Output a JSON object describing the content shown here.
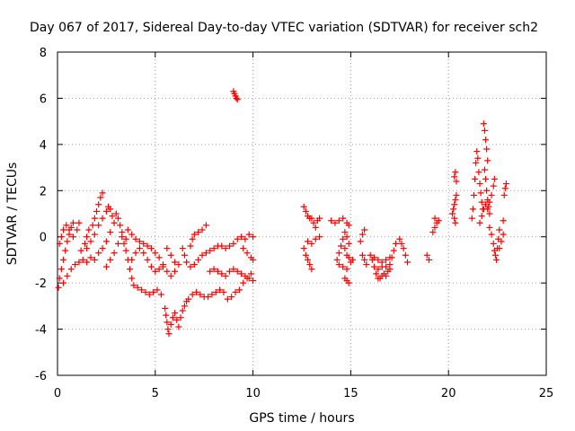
{
  "chart_data": {
    "type": "scatter",
    "title": "Day 067 of 2017, Sidereal Day-to-day VTEC variation (SDTVAR) for receiver sch2",
    "xlabel": "GPS time / hours",
    "ylabel": "SDTVAR / TECUs",
    "xlim": [
      0,
      25
    ],
    "ylim": [
      -6,
      8
    ],
    "xticks": [
      0,
      5,
      10,
      15,
      20,
      25
    ],
    "yticks": [
      -6,
      -4,
      -2,
      0,
      2,
      4,
      6,
      8
    ],
    "grid": true,
    "marker": "+",
    "color": "#ff0000",
    "series": [
      {
        "name": "SDTVAR",
        "points": [
          [
            0.05,
            -2.2
          ],
          [
            0.1,
            -1.8
          ],
          [
            0.2,
            -1.4
          ],
          [
            0.3,
            -1.0
          ],
          [
            0.4,
            -0.6
          ],
          [
            0.5,
            -0.2
          ],
          [
            0.6,
            0.1
          ],
          [
            0.7,
            0.4
          ],
          [
            0.8,
            0.6
          ],
          [
            0.1,
            -0.3
          ],
          [
            0.2,
            0.0
          ],
          [
            0.3,
            0.3
          ],
          [
            0.45,
            0.5
          ],
          [
            0.6,
            0.3
          ],
          [
            0.8,
            0.0
          ],
          [
            1.0,
            0.3
          ],
          [
            1.1,
            0.6
          ],
          [
            0.3,
            -2.0
          ],
          [
            0.5,
            -1.7
          ],
          [
            0.7,
            -1.4
          ],
          [
            0.9,
            -1.2
          ],
          [
            1.1,
            -1.1
          ],
          [
            1.3,
            -1.0
          ],
          [
            1.5,
            -1.1
          ],
          [
            1.7,
            -0.9
          ],
          [
            1.2,
            -0.6
          ],
          [
            1.4,
            -0.3
          ],
          [
            1.5,
            0.0
          ],
          [
            1.6,
            0.3
          ],
          [
            1.8,
            0.5
          ],
          [
            1.9,
            0.8
          ],
          [
            2.0,
            1.1
          ],
          [
            2.1,
            1.4
          ],
          [
            2.2,
            1.7
          ],
          [
            2.3,
            1.9
          ],
          [
            1.5,
            -0.5
          ],
          [
            1.7,
            -0.2
          ],
          [
            1.9,
            0.1
          ],
          [
            2.1,
            0.5
          ],
          [
            2.3,
            0.8
          ],
          [
            2.5,
            1.1
          ],
          [
            2.6,
            1.3
          ],
          [
            2.7,
            1.2
          ],
          [
            2.8,
            0.9
          ],
          [
            1.9,
            -1.0
          ],
          [
            2.1,
            -0.7
          ],
          [
            2.3,
            -0.5
          ],
          [
            2.5,
            -0.2
          ],
          [
            2.7,
            0.2
          ],
          [
            2.9,
            0.6
          ],
          [
            2.5,
            -1.3
          ],
          [
            2.7,
            -1.0
          ],
          [
            2.9,
            -0.7
          ],
          [
            3.1,
            -0.3
          ],
          [
            3.3,
            0.0
          ],
          [
            3.5,
            -0.1
          ],
          [
            3.0,
            1.0
          ],
          [
            3.1,
            0.8
          ],
          [
            3.2,
            0.5
          ],
          [
            3.3,
            0.2
          ],
          [
            3.4,
            -0.3
          ],
          [
            3.5,
            -0.6
          ],
          [
            3.6,
            -1.0
          ],
          [
            3.7,
            -1.4
          ],
          [
            3.8,
            -1.8
          ],
          [
            3.9,
            -2.1
          ],
          [
            4.1,
            -2.2
          ],
          [
            4.3,
            -2.3
          ],
          [
            4.5,
            -2.4
          ],
          [
            4.7,
            -2.5
          ],
          [
            4.9,
            -2.4
          ],
          [
            5.1,
            -2.3
          ],
          [
            5.3,
            -2.5
          ],
          [
            3.6,
            0.3
          ],
          [
            3.8,
            0.1
          ],
          [
            4.0,
            -0.1
          ],
          [
            4.2,
            -0.2
          ],
          [
            4.4,
            -0.3
          ],
          [
            4.6,
            -0.4
          ],
          [
            4.8,
            -0.5
          ],
          [
            5.0,
            -0.7
          ],
          [
            5.2,
            -0.9
          ],
          [
            5.4,
            -1.2
          ],
          [
            3.8,
            -1.0
          ],
          [
            4.0,
            -0.7
          ],
          [
            4.2,
            -0.5
          ],
          [
            4.4,
            -0.7
          ],
          [
            4.6,
            -1.0
          ],
          [
            4.8,
            -1.3
          ],
          [
            5.0,
            -1.5
          ],
          [
            5.2,
            -1.4
          ],
          [
            5.4,
            -1.3
          ],
          [
            5.6,
            -1.5
          ],
          [
            5.8,
            -1.7
          ],
          [
            6.0,
            -1.5
          ],
          [
            5.6,
            -0.5
          ],
          [
            5.8,
            -0.8
          ],
          [
            6.0,
            -1.1
          ],
          [
            6.2,
            -1.2
          ],
          [
            5.5,
            -3.1
          ],
          [
            5.55,
            -3.4
          ],
          [
            5.6,
            -3.7
          ],
          [
            5.65,
            -4.0
          ],
          [
            5.7,
            -4.2
          ],
          [
            5.8,
            -3.8
          ],
          [
            5.9,
            -3.5
          ],
          [
            6.0,
            -3.3
          ],
          [
            6.1,
            -3.6
          ],
          [
            6.2,
            -3.9
          ],
          [
            6.3,
            -3.5
          ],
          [
            6.4,
            -3.2
          ],
          [
            6.5,
            -3.0
          ],
          [
            6.6,
            -2.8
          ],
          [
            6.7,
            -2.7
          ],
          [
            6.4,
            -0.5
          ],
          [
            6.5,
            -0.8
          ],
          [
            6.6,
            -1.1
          ],
          [
            6.8,
            -1.3
          ],
          [
            6.8,
            -0.4
          ],
          [
            6.9,
            -0.1
          ],
          [
            7.0,
            0.1
          ],
          [
            7.2,
            0.2
          ],
          [
            7.4,
            0.3
          ],
          [
            7.6,
            0.5
          ],
          [
            6.9,
            -2.5
          ],
          [
            7.1,
            -2.4
          ],
          [
            7.3,
            -2.5
          ],
          [
            7.5,
            -2.6
          ],
          [
            7.7,
            -2.6
          ],
          [
            7.9,
            -2.5
          ],
          [
            8.1,
            -2.4
          ],
          [
            8.3,
            -2.3
          ],
          [
            7.0,
            -1.2
          ],
          [
            7.2,
            -1.0
          ],
          [
            7.4,
            -0.8
          ],
          [
            7.6,
            -0.7
          ],
          [
            7.8,
            -0.6
          ],
          [
            8.0,
            -0.5
          ],
          [
            8.2,
            -0.4
          ],
          [
            8.4,
            -0.4
          ],
          [
            8.6,
            -0.5
          ],
          [
            8.8,
            -0.4
          ],
          [
            9.0,
            -0.3
          ],
          [
            9.2,
            -0.1
          ],
          [
            9.4,
            0.0
          ],
          [
            9.6,
            -0.1
          ],
          [
            9.8,
            0.1
          ],
          [
            10.0,
            0.0
          ],
          [
            7.8,
            -1.5
          ],
          [
            8.0,
            -1.4
          ],
          [
            8.2,
            -1.5
          ],
          [
            8.4,
            -1.6
          ],
          [
            8.6,
            -1.7
          ],
          [
            8.8,
            -1.5
          ],
          [
            9.0,
            -1.4
          ],
          [
            9.2,
            -1.5
          ],
          [
            9.4,
            -1.6
          ],
          [
            9.6,
            -1.7
          ],
          [
            9.8,
            -1.8
          ],
          [
            10.0,
            -1.9
          ],
          [
            8.5,
            -2.4
          ],
          [
            8.7,
            -2.7
          ],
          [
            8.9,
            -2.6
          ],
          [
            9.1,
            -2.4
          ],
          [
            9.3,
            -2.3
          ],
          [
            9.5,
            -2.0
          ],
          [
            9.7,
            -1.8
          ],
          [
            9.9,
            -1.6
          ],
          [
            9.0,
            6.3
          ],
          [
            9.05,
            6.2
          ],
          [
            9.1,
            6.1
          ],
          [
            9.15,
            6.0
          ],
          [
            9.2,
            5.95
          ],
          [
            9.5,
            -0.5
          ],
          [
            9.7,
            -0.7
          ],
          [
            9.9,
            -0.9
          ],
          [
            10.0,
            -1.0
          ],
          [
            12.6,
            1.3
          ],
          [
            12.7,
            1.1
          ],
          [
            12.8,
            0.9
          ],
          [
            12.9,
            0.8
          ],
          [
            13.0,
            0.8
          ],
          [
            13.1,
            0.6
          ],
          [
            13.2,
            0.4
          ],
          [
            13.3,
            0.7
          ],
          [
            13.4,
            0.8
          ],
          [
            12.6,
            -0.5
          ],
          [
            12.7,
            -0.8
          ],
          [
            12.8,
            -1.0
          ],
          [
            12.9,
            -1.2
          ],
          [
            13.0,
            -1.4
          ],
          [
            12.8,
            -0.2
          ],
          [
            13.0,
            -0.3
          ],
          [
            13.2,
            -0.1
          ],
          [
            13.4,
            0.0
          ],
          [
            14.0,
            0.7
          ],
          [
            14.2,
            0.6
          ],
          [
            14.4,
            0.7
          ],
          [
            14.6,
            0.8
          ],
          [
            14.8,
            0.6
          ],
          [
            14.9,
            0.5
          ],
          [
            14.3,
            -1.0
          ],
          [
            14.4,
            -0.7
          ],
          [
            14.5,
            -0.4
          ],
          [
            14.6,
            -0.1
          ],
          [
            14.7,
            0.2
          ],
          [
            14.8,
            0.0
          ],
          [
            14.9,
            -0.3
          ],
          [
            14.4,
            -1.2
          ],
          [
            14.6,
            -1.3
          ],
          [
            14.8,
            -1.4
          ],
          [
            15.0,
            -1.1
          ],
          [
            14.7,
            -1.8
          ],
          [
            14.8,
            -1.9
          ],
          [
            14.9,
            -2.0
          ],
          [
            14.7,
            -0.5
          ],
          [
            14.8,
            -0.8
          ],
          [
            14.9,
            -0.9
          ],
          [
            15.1,
            -1.0
          ],
          [
            15.5,
            -0.2
          ],
          [
            15.6,
            0.1
          ],
          [
            15.7,
            0.3
          ],
          [
            15.6,
            -0.8
          ],
          [
            15.7,
            -1.0
          ],
          [
            15.8,
            -1.2
          ],
          [
            16.0,
            -0.8
          ],
          [
            16.1,
            -1.0
          ],
          [
            16.2,
            -1.3
          ],
          [
            16.3,
            -1.6
          ],
          [
            16.4,
            -1.8
          ],
          [
            16.5,
            -1.8
          ],
          [
            16.6,
            -1.7
          ],
          [
            16.7,
            -1.6
          ],
          [
            16.8,
            -1.7
          ],
          [
            16.9,
            -1.5
          ],
          [
            17.0,
            -1.2
          ],
          [
            17.1,
            -0.9
          ],
          [
            17.2,
            -0.6
          ],
          [
            17.3,
            -0.3
          ],
          [
            16.2,
            -0.9
          ],
          [
            16.4,
            -1.0
          ],
          [
            16.6,
            -1.1
          ],
          [
            16.8,
            -1.0
          ],
          [
            17.0,
            -0.9
          ],
          [
            16.4,
            -1.4
          ],
          [
            16.6,
            -1.3
          ],
          [
            16.8,
            -1.3
          ],
          [
            17.0,
            -1.4
          ],
          [
            17.5,
            -0.1
          ],
          [
            17.6,
            -0.3
          ],
          [
            17.7,
            -0.5
          ],
          [
            17.8,
            -0.8
          ],
          [
            17.9,
            -1.1
          ],
          [
            18.9,
            -0.8
          ],
          [
            19.0,
            -1.0
          ],
          [
            19.2,
            0.2
          ],
          [
            19.3,
            0.4
          ],
          [
            19.4,
            0.6
          ],
          [
            19.5,
            0.7
          ],
          [
            19.3,
            0.8
          ],
          [
            20.2,
            1.0
          ],
          [
            20.25,
            1.2
          ],
          [
            20.3,
            1.4
          ],
          [
            20.35,
            1.6
          ],
          [
            20.4,
            1.8
          ],
          [
            20.3,
            2.6
          ],
          [
            20.35,
            2.8
          ],
          [
            20.4,
            2.4
          ],
          [
            20.3,
            0.8
          ],
          [
            20.35,
            0.6
          ],
          [
            21.2,
            0.8
          ],
          [
            21.25,
            1.2
          ],
          [
            21.3,
            1.8
          ],
          [
            21.35,
            2.5
          ],
          [
            21.4,
            3.2
          ],
          [
            21.45,
            3.7
          ],
          [
            21.5,
            3.4
          ],
          [
            21.55,
            2.8
          ],
          [
            21.6,
            2.3
          ],
          [
            21.65,
            1.9
          ],
          [
            21.7,
            1.5
          ],
          [
            21.75,
            1.2
          ],
          [
            21.8,
            4.9
          ],
          [
            21.85,
            4.6
          ],
          [
            21.9,
            4.2
          ],
          [
            21.95,
            3.8
          ],
          [
            22.0,
            3.3
          ],
          [
            21.85,
            2.9
          ],
          [
            21.9,
            2.5
          ],
          [
            21.95,
            2.0
          ],
          [
            22.0,
            1.6
          ],
          [
            22.05,
            1.3
          ],
          [
            22.1,
            1.0
          ],
          [
            21.6,
            0.6
          ],
          [
            21.7,
            0.9
          ],
          [
            21.8,
            1.2
          ],
          [
            21.9,
            1.4
          ],
          [
            22.0,
            1.2
          ],
          [
            22.1,
            1.5
          ],
          [
            22.2,
            1.8
          ],
          [
            22.3,
            2.2
          ],
          [
            22.35,
            2.5
          ],
          [
            22.1,
            0.4
          ],
          [
            22.2,
            0.1
          ],
          [
            22.3,
            -0.3
          ],
          [
            22.35,
            -0.6
          ],
          [
            22.4,
            -0.8
          ],
          [
            22.45,
            -1.0
          ],
          [
            22.5,
            -0.5
          ],
          [
            22.55,
            -0.1
          ],
          [
            22.6,
            0.3
          ],
          [
            22.6,
            -0.5
          ],
          [
            22.7,
            -0.2
          ],
          [
            22.8,
            0.1
          ],
          [
            22.8,
            0.7
          ],
          [
            22.85,
            1.8
          ],
          [
            22.9,
            2.1
          ],
          [
            22.95,
            2.3
          ]
        ]
      }
    ]
  }
}
